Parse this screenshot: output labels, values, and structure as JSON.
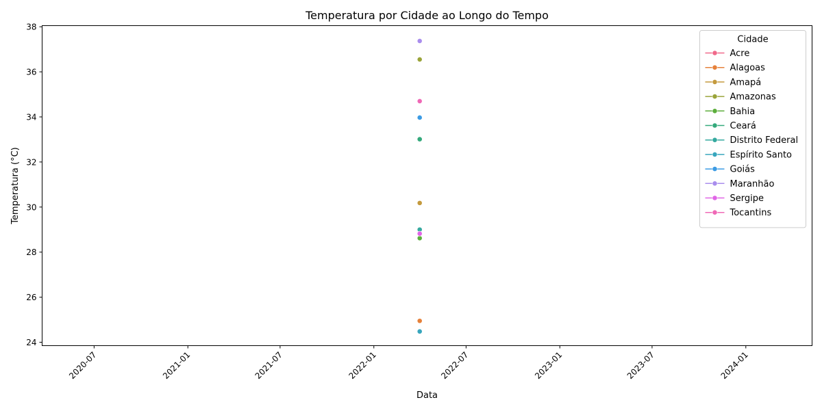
{
  "chart_data": {
    "type": "scatter",
    "title": "Temperatura por Cidade ao Longo do Tempo",
    "xlabel": "Data",
    "ylabel": "Temperatura (°C)",
    "ylim": [
      23.85,
      38.05
    ],
    "xlim": [
      "2020-03-21",
      "2024-05-10"
    ],
    "y_ticks": [
      24,
      26,
      28,
      30,
      32,
      34,
      36,
      38
    ],
    "x_ticks": [
      "2020-07",
      "2021-01",
      "2021-07",
      "2022-01",
      "2022-07",
      "2023-01",
      "2023-07",
      "2024-01"
    ],
    "grid": false,
    "legend": {
      "title": "Cidade",
      "placement": "top-right"
    },
    "series": [
      {
        "name": "Acre",
        "color": "#f0698a",
        "points": []
      },
      {
        "name": "Alagoas",
        "color": "#e6813a",
        "points": [
          {
            "x": "2022-04-01",
            "y": 24.95
          }
        ]
      },
      {
        "name": "Amapá",
        "color": "#c49a3e",
        "points": [
          {
            "x": "2022-04-01",
            "y": 30.18
          }
        ]
      },
      {
        "name": "Amazonas",
        "color": "#9aa43a",
        "points": [
          {
            "x": "2022-04-01",
            "y": 36.55
          }
        ]
      },
      {
        "name": "Bahia",
        "color": "#5cae3c",
        "points": [
          {
            "x": "2022-04-01",
            "y": 28.62
          }
        ]
      },
      {
        "name": "Ceará",
        "color": "#34a97b",
        "points": [
          {
            "x": "2022-04-01",
            "y": 33.01
          }
        ]
      },
      {
        "name": "Distrito Federal",
        "color": "#35a99f",
        "points": [
          {
            "x": "2022-04-01",
            "y": 29.0
          }
        ]
      },
      {
        "name": "Espírito Santo",
        "color": "#38a6bd",
        "points": [
          {
            "x": "2022-04-01",
            "y": 24.48
          }
        ]
      },
      {
        "name": "Goiás",
        "color": "#3c9be4",
        "points": [
          {
            "x": "2022-04-01",
            "y": 33.97
          }
        ]
      },
      {
        "name": "Maranhão",
        "color": "#a98ded",
        "points": [
          {
            "x": "2022-04-01",
            "y": 37.37
          }
        ]
      },
      {
        "name": "Sergipe",
        "color": "#e065e6",
        "points": [
          {
            "x": "2022-04-01",
            "y": 28.82
          }
        ]
      },
      {
        "name": "Tocantins",
        "color": "#ef68b6",
        "points": [
          {
            "x": "2022-04-01",
            "y": 34.7
          }
        ]
      }
    ]
  }
}
